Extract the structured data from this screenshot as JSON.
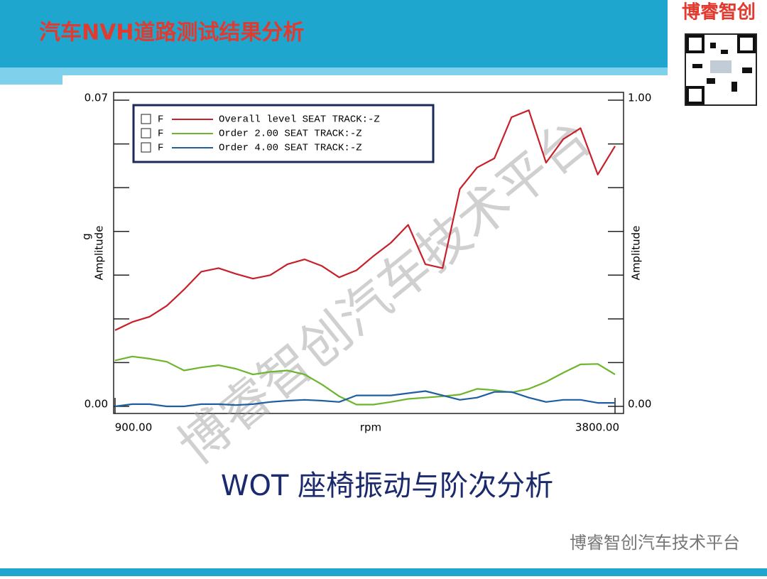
{
  "header": {
    "title": "汽车NVH道路测试结果分析",
    "brand": "博睿智创"
  },
  "chart_data": {
    "type": "line",
    "x_label": "rpm",
    "y_label": "Amplitude",
    "y_unit": "g",
    "y2_label": "Amplitude",
    "legend_marker": "F",
    "x": [
      900,
      1000,
      1100,
      1200,
      1300,
      1400,
      1500,
      1600,
      1700,
      1800,
      1900,
      2000,
      2100,
      2200,
      2300,
      2400,
      2500,
      2600,
      2700,
      2800,
      2900,
      3000,
      3100,
      3200,
      3300,
      3400,
      3500,
      3600,
      3700,
      3800
    ],
    "xlim": [
      900,
      3800
    ],
    "xticks": [
      {
        "value": 900,
        "label": "900.00"
      },
      {
        "value": 3800,
        "label": "3800.00"
      }
    ],
    "ylim": [
      0,
      0.07
    ],
    "yticks": [
      {
        "value": 0,
        "label": "0.00"
      },
      {
        "value": 0.07,
        "label": "0.07"
      }
    ],
    "yminorticks": [
      0.01,
      0.02,
      0.03,
      0.04,
      0.05,
      0.06
    ],
    "y2lim": [
      0,
      1
    ],
    "y2ticks": [
      {
        "value": 0,
        "label": "0.00"
      },
      {
        "value": 1,
        "label": "1.00"
      }
    ],
    "series": [
      {
        "name": "Overall level SEAT TRACK:-Z",
        "color": "#c8202a",
        "values": [
          0.0174,
          0.0193,
          0.0205,
          0.023,
          0.0267,
          0.0308,
          0.0316,
          0.0303,
          0.0292,
          0.03,
          0.0325,
          0.0336,
          0.0321,
          0.0295,
          0.0311,
          0.0344,
          0.0374,
          0.0415,
          0.0325,
          0.0316,
          0.0497,
          0.0546,
          0.0567,
          0.0661,
          0.0677,
          0.0557,
          0.0611,
          0.0636,
          0.053,
          0.0595
        ]
      },
      {
        "name": "Order 2.00 SEAT TRACK:-Z",
        "color": "#6cb52d",
        "values": [
          0.0105,
          0.0114,
          0.0109,
          0.0102,
          0.0082,
          0.0089,
          0.0094,
          0.0086,
          0.0073,
          0.0079,
          0.0082,
          0.0073,
          0.005,
          0.0023,
          0.0004,
          0.0004,
          0.001,
          0.0017,
          0.002,
          0.0023,
          0.0027,
          0.004,
          0.0037,
          0.0032,
          0.004,
          0.0056,
          0.0077,
          0.0096,
          0.0097,
          0.0073
        ]
      },
      {
        "name": "Order 4.00 SEAT TRACK:-Z",
        "color": "#1f5fa0",
        "values": [
          0,
          0.0005,
          0.0005,
          0,
          0,
          0.0005,
          0.0005,
          0.0003,
          0.0005,
          0.001,
          0.0013,
          0.0015,
          0.0013,
          0.001,
          0.0025,
          0.0025,
          0.0025,
          0.003,
          0.0035,
          0.0025,
          0.0015,
          0.002,
          0.0033,
          0.0033,
          0.002,
          0.001,
          0.0015,
          0.0015,
          0.0008,
          0.0008
        ]
      }
    ]
  },
  "caption": "WOT 座椅振动与阶次分析",
  "footer": "博睿智创汽车技术平台",
  "watermark": "博睿智创汽车技术平台"
}
